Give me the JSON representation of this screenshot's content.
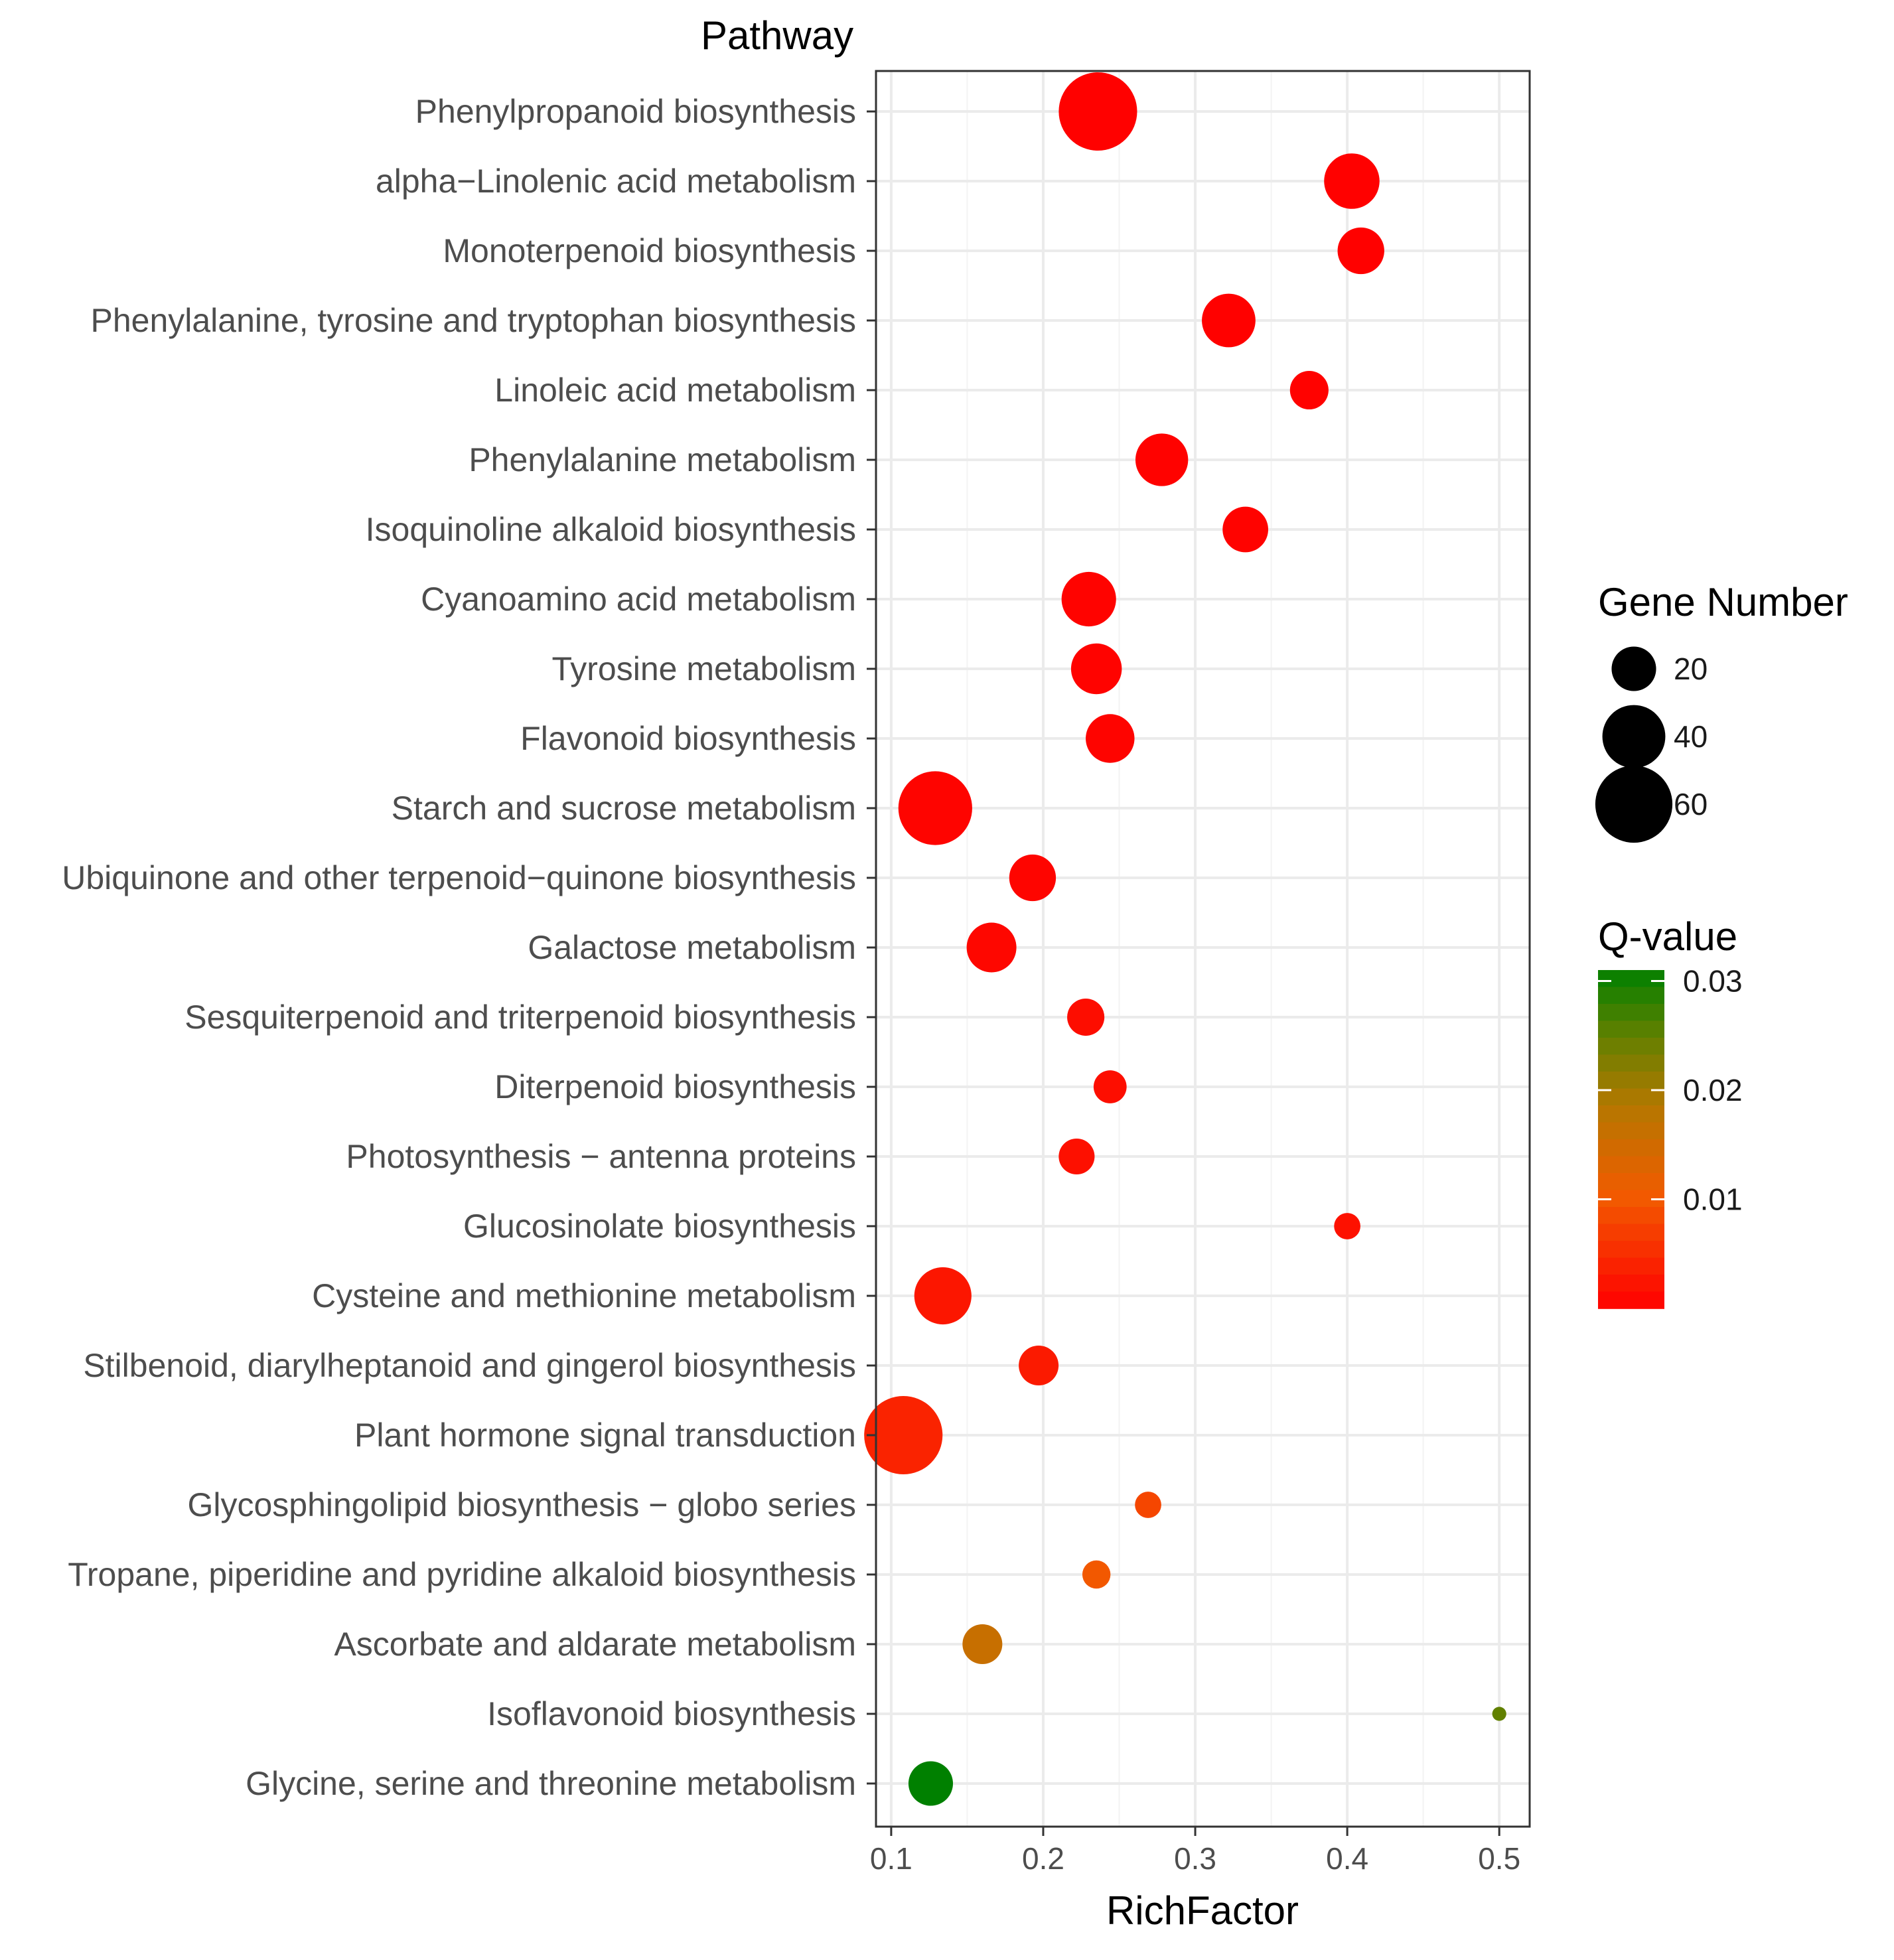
{
  "chart_data": {
    "type": "scatter",
    "title": "Pathway",
    "xlabel": "RichFactor",
    "ylabel": "",
    "xlim": [
      0.09,
      0.52
    ],
    "grid": true,
    "x_ticks": [
      {
        "value": 0.1,
        "label": "0.1"
      },
      {
        "value": 0.2,
        "label": "0.2"
      },
      {
        "value": 0.3,
        "label": "0.3"
      },
      {
        "value": 0.4,
        "label": "0.4"
      },
      {
        "value": 0.5,
        "label": "0.5"
      }
    ],
    "points": [
      {
        "pathway": "Phenylpropanoid biosynthesis",
        "rich_factor": 0.236,
        "gene_number": 62,
        "q_value": 0.0001
      },
      {
        "pathway": "alpha−Linolenic acid metabolism",
        "rich_factor": 0.403,
        "gene_number": 31,
        "q_value": 0.0001
      },
      {
        "pathway": "Monoterpenoid biosynthesis",
        "rich_factor": 0.409,
        "gene_number": 22,
        "q_value": 0.0001
      },
      {
        "pathway": "Phenylalanine, tyrosine and tryptophan biosynthesis",
        "rich_factor": 0.322,
        "gene_number": 29,
        "q_value": 0.0001
      },
      {
        "pathway": "Linoleic acid metabolism",
        "rich_factor": 0.375,
        "gene_number": 15,
        "q_value": 0.0002
      },
      {
        "pathway": "Phenylalanine metabolism",
        "rich_factor": 0.278,
        "gene_number": 28,
        "q_value": 0.0002
      },
      {
        "pathway": "Isoquinoline alkaloid biosynthesis",
        "rich_factor": 0.333,
        "gene_number": 21,
        "q_value": 0.0003
      },
      {
        "pathway": "Cyanoamino acid metabolism",
        "rich_factor": 0.23,
        "gene_number": 30,
        "q_value": 0.0003
      },
      {
        "pathway": "Tyrosine metabolism",
        "rich_factor": 0.235,
        "gene_number": 26,
        "q_value": 0.0003
      },
      {
        "pathway": "Flavonoid biosynthesis",
        "rich_factor": 0.244,
        "gene_number": 24,
        "q_value": 0.0004
      },
      {
        "pathway": "Starch and sucrose metabolism",
        "rich_factor": 0.129,
        "gene_number": 55,
        "q_value": 0.0004
      },
      {
        "pathway": "Ubiquinone and other terpenoid−quinone biosynthesis",
        "rich_factor": 0.193,
        "gene_number": 22,
        "q_value": 0.0006
      },
      {
        "pathway": "Galactose metabolism",
        "rich_factor": 0.166,
        "gene_number": 25,
        "q_value": 0.0008
      },
      {
        "pathway": "Sesquiterpenoid and triterpenoid biosynthesis",
        "rich_factor": 0.228,
        "gene_number": 14,
        "q_value": 0.0015
      },
      {
        "pathway": "Diterpenoid biosynthesis",
        "rich_factor": 0.244,
        "gene_number": 11,
        "q_value": 0.0016
      },
      {
        "pathway": "Photosynthesis − antenna proteins",
        "rich_factor": 0.222,
        "gene_number": 13,
        "q_value": 0.0018
      },
      {
        "pathway": "Glucosinolate biosynthesis",
        "rich_factor": 0.4,
        "gene_number": 7,
        "q_value": 0.0019
      },
      {
        "pathway": "Cysteine and methionine metabolism",
        "rich_factor": 0.134,
        "gene_number": 33,
        "q_value": 0.0025
      },
      {
        "pathway": "Stilbenoid, diarylheptanoid and gingerol biosynthesis",
        "rich_factor": 0.197,
        "gene_number": 16,
        "q_value": 0.003
      },
      {
        "pathway": "Plant hormone signal transduction",
        "rich_factor": 0.108,
        "gene_number": 62,
        "q_value": 0.004
      },
      {
        "pathway": "Glycosphingolipid biosynthesis − globo series",
        "rich_factor": 0.269,
        "gene_number": 7,
        "q_value": 0.008
      },
      {
        "pathway": "Tropane, piperidine and pyridine alkaloid biosynthesis",
        "rich_factor": 0.235,
        "gene_number": 8,
        "q_value": 0.01
      },
      {
        "pathway": "Ascorbate and aldarate metabolism",
        "rich_factor": 0.16,
        "gene_number": 16,
        "q_value": 0.016
      },
      {
        "pathway": "Isoflavonoid biosynthesis",
        "rich_factor": 0.5,
        "gene_number": 2,
        "q_value": 0.025
      },
      {
        "pathway": "Glycine, serine and threonine metabolism",
        "rich_factor": 0.126,
        "gene_number": 20,
        "q_value": 0.031
      }
    ],
    "size_legend": {
      "title": "Gene Number",
      "entries": [
        {
          "value": 20,
          "label": "20"
        },
        {
          "value": 40,
          "label": "40"
        },
        {
          "value": 60,
          "label": "60"
        }
      ]
    },
    "color_legend": {
      "title": "Q-value",
      "range": [
        0.0,
        0.031
      ],
      "low_color": "#FF0000",
      "mid_color": "#E66F00",
      "mid2_color": "#A08000",
      "high_color": "#008000",
      "ticks": [
        {
          "value": 0.01,
          "label": "0.01"
        },
        {
          "value": 0.02,
          "label": "0.02"
        },
        {
          "value": 0.03,
          "label": "0.03"
        }
      ]
    }
  }
}
